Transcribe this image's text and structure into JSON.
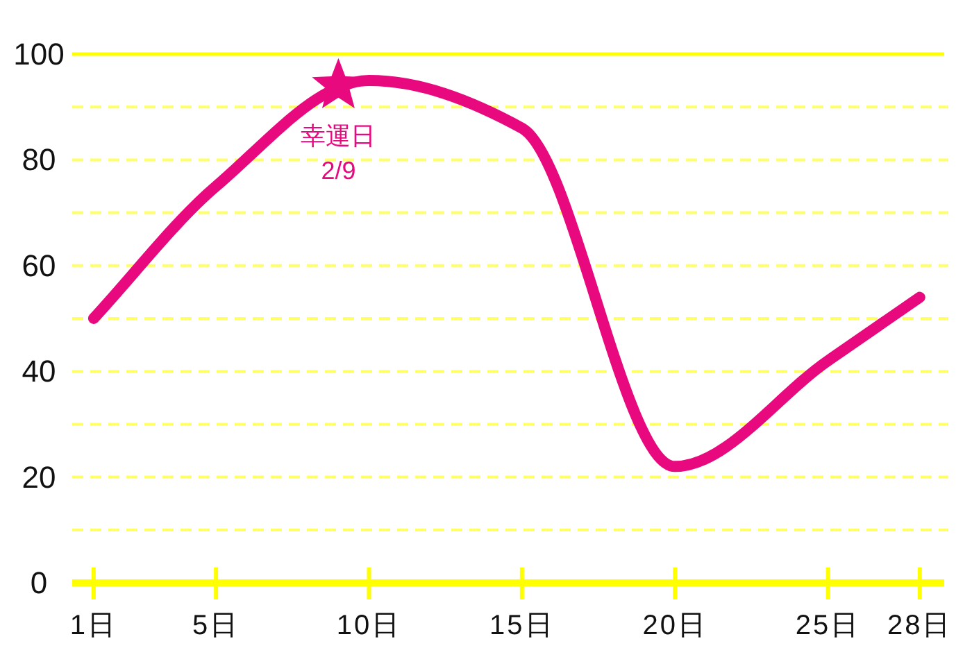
{
  "chart_data": {
    "type": "line",
    "x": [
      1,
      5,
      10,
      15,
      20,
      25,
      28
    ],
    "xlim": [
      0.3,
      28.8
    ],
    "xticks": [
      {
        "value": 1,
        "label": "1日"
      },
      {
        "value": 5,
        "label": "5日"
      },
      {
        "value": 10,
        "label": "10日"
      },
      {
        "value": 15,
        "label": "15日"
      },
      {
        "value": 20,
        "label": "20日"
      },
      {
        "value": 25,
        "label": "25日"
      },
      {
        "value": 28,
        "label": "28日"
      }
    ],
    "ylim": [
      0,
      100
    ],
    "yticks": [
      0,
      {
        "value": 10,
        "label": null
      },
      20,
      {
        "value": 30,
        "label": null
      },
      40,
      {
        "value": 50,
        "label": null
      },
      60,
      {
        "value": 70,
        "label": null
      },
      80,
      {
        "value": 90,
        "label": null
      },
      100
    ],
    "grid": "y",
    "series": [
      {
        "color": "#e8097f",
        "values": [
          50,
          75,
          95,
          86,
          22,
          42,
          54
        ]
      },
      {
        "type": "scatter",
        "x": [
          9
        ],
        "values": [
          94
        ],
        "color": "#e8097f",
        "marker": "star"
      }
    ],
    "annotations": [
      {
        "text": "幸運日\n2/9",
        "x": 9,
        "y": 94
      }
    ]
  }
}
